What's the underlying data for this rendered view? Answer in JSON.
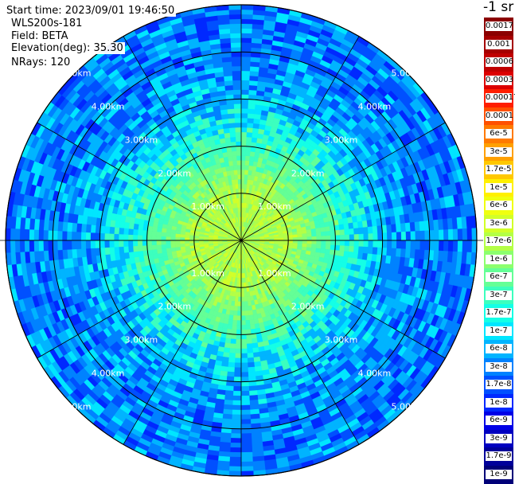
{
  "info": {
    "start_time": "Start time: 2023/09/01 19:46:50",
    "station": "WLS200s-181",
    "field": "Field: BETA",
    "elevation": "Elevation(deg): 35.30",
    "nrays": "NRays: 120"
  },
  "colorbar": {
    "unit": "-1 sr",
    "labels": [
      "0.0017",
      "0.001",
      "0.0006",
      "0.0003",
      "0.00017",
      "0.0001",
      "6e-5",
      "3e-5",
      "1.7e-5",
      "1e-5",
      "6e-6",
      "3e-6",
      "1.7e-6",
      "1e-6",
      "6e-7",
      "3e-7",
      "1.7e-7",
      "1e-7",
      "6e-8",
      "3e-8",
      "1.7e-8",
      "1e-8",
      "6e-9",
      "3e-9",
      "1.7e-9",
      "1e-9"
    ],
    "colors": [
      "#8b0000",
      "#a50000",
      "#c00000",
      "#dc0000",
      "#ff1e00",
      "#ff5000",
      "#ff7a00",
      "#ffa000",
      "#ffc800",
      "#fff000",
      "#f0ff10",
      "#d2ff28",
      "#b4ff46",
      "#8cff6e",
      "#64ff96",
      "#3cffbe",
      "#14ffe6",
      "#00e6ff",
      "#00b4ff",
      "#0082ff",
      "#0050ff",
      "#0028ff",
      "#0000e6",
      "#0000c0",
      "#00009a",
      "#000078"
    ]
  },
  "chart_data": {
    "type": "heatmap",
    "projection": "polar",
    "title": "",
    "field": "BETA",
    "elevation_deg": 35.3,
    "n_rays": 120,
    "range_rings_km": [
      1,
      2,
      3,
      4,
      5
    ],
    "ring_labels": [
      "1.00km",
      "2.00km",
      "3.00km",
      "4.00km",
      "5.00km"
    ],
    "spoke_step_deg": 30,
    "max_range_km": 5.0,
    "value_profile": [
      {
        "range_km": 0.0,
        "beta": "1.7e-6"
      },
      {
        "range_km": 1.0,
        "beta": "1.7e-6"
      },
      {
        "range_km": 2.0,
        "beta": "3e-7"
      },
      {
        "range_km": 3.0,
        "beta": "6e-8"
      },
      {
        "range_km": 4.0,
        "beta": "3e-8"
      },
      {
        "range_km": 5.0,
        "beta": "3e-8"
      }
    ]
  }
}
